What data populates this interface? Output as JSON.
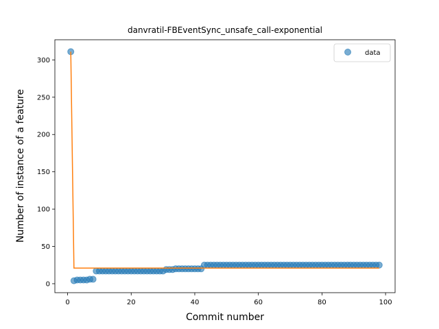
{
  "chart_data": {
    "type": "scatter",
    "title": "danvratil-FBEventSync_unsafe_call-exponential",
    "xlabel": "Commit number",
    "ylabel": "Number of instance of a feature",
    "xlim": [
      -4,
      103
    ],
    "ylim": [
      -12,
      327
    ],
    "xticks": [
      0,
      20,
      40,
      60,
      80,
      100
    ],
    "yticks": [
      0,
      50,
      100,
      150,
      200,
      250,
      300
    ],
    "grid": false,
    "legend_position": "top-right",
    "series": [
      {
        "name": "data",
        "kind": "scatter",
        "color": "#1f77b4",
        "x": [
          1,
          2,
          3,
          4,
          5,
          6,
          7,
          8,
          9,
          10,
          11,
          12,
          13,
          14,
          15,
          16,
          17,
          18,
          19,
          20,
          21,
          22,
          23,
          24,
          25,
          26,
          27,
          28,
          29,
          30,
          31,
          32,
          33,
          34,
          35,
          36,
          37,
          38,
          39,
          40,
          41,
          42,
          43,
          44,
          45,
          46,
          47,
          48,
          49,
          50,
          51,
          52,
          53,
          54,
          55,
          56,
          57,
          58,
          59,
          60,
          61,
          62,
          63,
          64,
          65,
          66,
          67,
          68,
          69,
          70,
          71,
          72,
          73,
          74,
          75,
          76,
          77,
          78,
          79,
          80,
          81,
          82,
          83,
          84,
          85,
          86,
          87,
          88,
          89,
          90,
          91,
          92,
          93,
          94,
          95,
          96,
          97,
          98
        ],
        "y": [
          311,
          4,
          5,
          5,
          5,
          5,
          6,
          6,
          17,
          17,
          17,
          17,
          17,
          17,
          17,
          17,
          17,
          17,
          17,
          17,
          17,
          17,
          17,
          17,
          17,
          17,
          17,
          17,
          17,
          17,
          19,
          19,
          19,
          20,
          20,
          20,
          20,
          20,
          20,
          20,
          20,
          20,
          25,
          25,
          25,
          25,
          25,
          25,
          25,
          25,
          25,
          25,
          25,
          25,
          25,
          25,
          25,
          25,
          25,
          25,
          25,
          25,
          25,
          25,
          25,
          25,
          25,
          25,
          25,
          25,
          25,
          25,
          25,
          25,
          25,
          25,
          25,
          25,
          25,
          25,
          25,
          25,
          25,
          25,
          25,
          25,
          25,
          25,
          25,
          25,
          25,
          25,
          25,
          25,
          25,
          25,
          25,
          25
        ]
      },
      {
        "kind": "line",
        "color": "#ff7f0e",
        "x": [
          1,
          2,
          98
        ],
        "y": [
          311,
          21,
          21
        ]
      }
    ]
  }
}
